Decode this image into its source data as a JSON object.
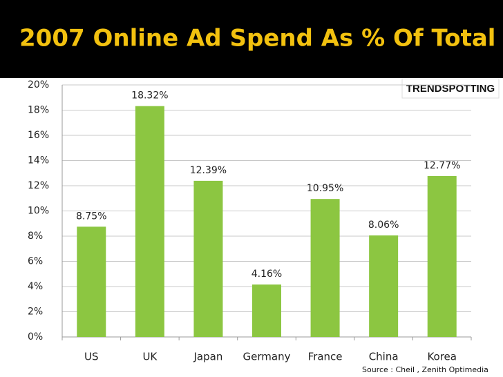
{
  "chart_data": {
    "type": "bar",
    "title": "2007 Online Ad Spend As % Of  Total",
    "categories": [
      "US",
      "UK",
      "Japan",
      "Germany",
      "France",
      "China",
      "Korea"
    ],
    "values": [
      8.75,
      18.32,
      12.39,
      4.16,
      10.95,
      8.06,
      12.77
    ],
    "value_labels": [
      "8.75%",
      "18.32%",
      "12.39%",
      "4.16%",
      "10.95%",
      "8.06%",
      "12.77%"
    ],
    "color": "#8cc641",
    "ylim": [
      0,
      20
    ],
    "yticks": [
      {
        "value": 0,
        "label": "0%"
      },
      {
        "value": 2,
        "label": "2%"
      },
      {
        "value": 4,
        "label": "4%"
      },
      {
        "value": 6,
        "label": "6%"
      },
      {
        "value": 8,
        "label": "8%"
      },
      {
        "value": 10,
        "label": "10%"
      },
      {
        "value": 12,
        "label": "12%"
      },
      {
        "value": 14,
        "label": "14%"
      },
      {
        "value": 16,
        "label": "16%"
      },
      {
        "value": 18,
        "label": "18%"
      },
      {
        "value": 20,
        "label": "20%"
      }
    ],
    "grid": true,
    "logo": "TRENDSPOTTING",
    "source": "Source : Cheil , Zenith Optimedia"
  }
}
